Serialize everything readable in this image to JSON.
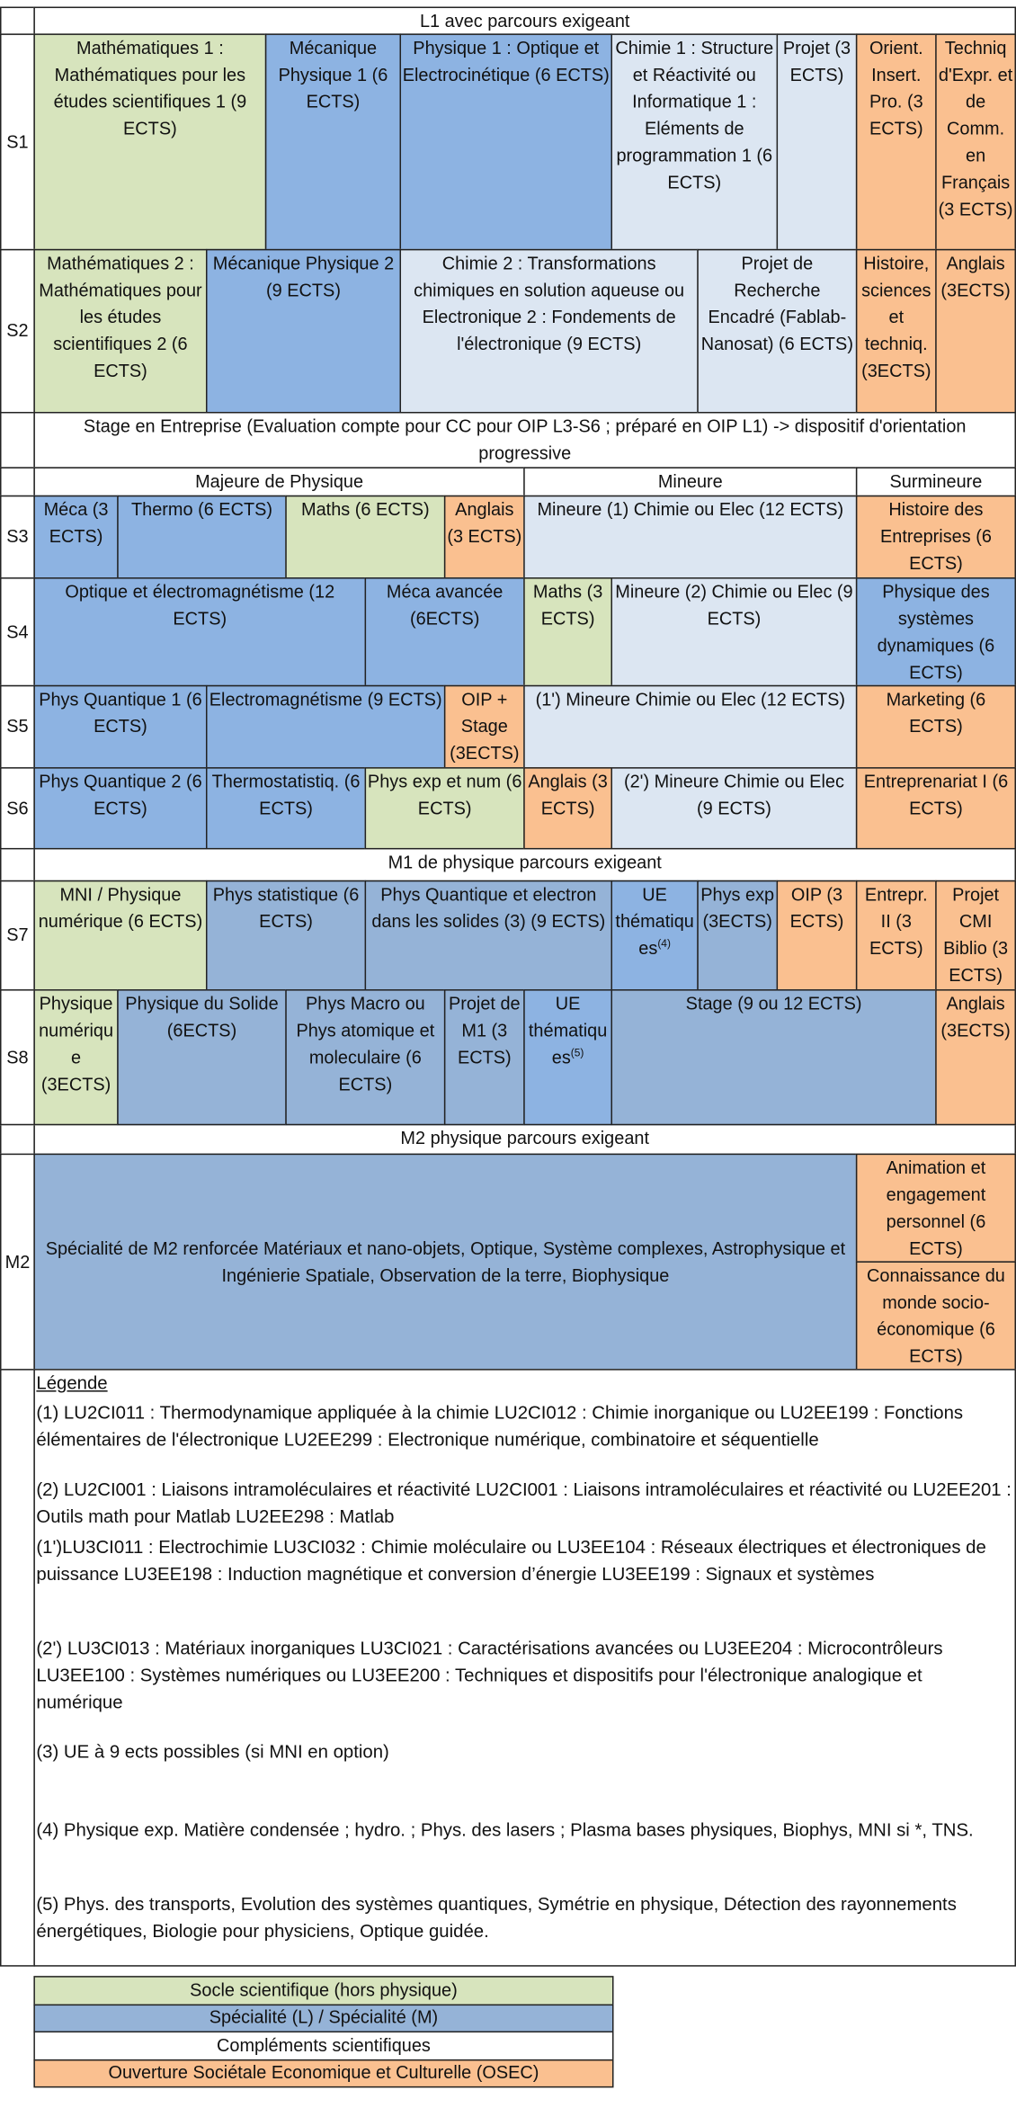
{
  "l1_title": "L1 avec parcours exigeant",
  "rows": [
    {
      "label": "S1",
      "cells": [
        "Mathématiques 1 : Mathématiques pour les études scientifiques 1 (9 ECTS)",
        "Mécanique Physique 1 (6 ECTS)",
        "Physique 1 : Optique et Electrocinétique (6 ECTS)",
        "Chimie 1 : Structure et Réactivité ou Informatique 1 : Eléments de programmation 1 (6 ECTS)",
        "Projet (3 ECTS)",
        "Orient. Insert. Pro. (3 ECTS)",
        "Techniq d'Expr. et de Comm. en Français (3 ECTS)"
      ]
    },
    {
      "label": "S2",
      "cells": [
        "Mathématiques 2 : Mathématiques pour les études scientifiques 2 (6 ECTS)",
        "Mécanique Physique 2 (9 ECTS)",
        "Chimie 2 : Transformations chimiques en solution aqueuse ou Electronique 2 : Fondements de l'électronique (9 ECTS)",
        "Projet de Recherche Encadré (Fablab-Nanosat) (6 ECTS)",
        "Histoire, sciences et techniq. (3ECTS)",
        "Anglais (3ECTS)"
      ]
    },
    {
      "label": "S3",
      "cells": [
        "Méca (3 ECTS)",
        "Thermo (6 ECTS)",
        "Maths (6 ECTS)",
        "Anglais (3 ECTS)",
        "Mineure (1) Chimie ou Elec (12 ECTS)",
        "Histoire des Entreprises (6 ECTS)"
      ]
    },
    {
      "label": "S4",
      "cells": [
        "Optique et électromagnétisme (12 ECTS)",
        "Méca avancée (6ECTS)",
        "Maths (3 ECTS)",
        "Mineure (2)  Chimie ou Elec (9 ECTS)",
        "Physique des systèmes dynamiques (6 ECTS)"
      ]
    },
    {
      "label": "S5",
      "cells": [
        "Phys Quantique 1 (6 ECTS)",
        "Electromagnétisme (9 ECTS)",
        "OIP + Stage (3ECTS)",
        "(1') Mineure Chimie ou Elec (12 ECTS)",
        "Marketing (6 ECTS)"
      ]
    },
    {
      "label": "S6",
      "cells": [
        "Phys Quantique 2 (6 ECTS)",
        "Thermostatistiq. (6 ECTS)",
        "Phys exp et num (6 ECTS)",
        "Anglais (3 ECTS)",
        "(2') Mineure Chimie ou Elec (9 ECTS)",
        "Entreprenariat I (6 ECTS)"
      ]
    },
    {
      "label": "S7",
      "cells": [
        "MNI / Physique numérique (6 ECTS)",
        "Phys statistique (6 ECTS)",
        "Phys Quantique et electron dans les solides (3) (9 ECTS)",
        {
          "text": "UE thématiques",
          "sup": "(4)"
        },
        "Phys exp (3ECTS)",
        "OIP (3 ECTS)",
        "Entrepr. II (3 ECTS)",
        "Projet CMI Biblio (3 ECTS)"
      ]
    },
    {
      "label": "S8",
      "cells": [
        "Physique numérique (3ECTS)",
        "Physique du Solide (6ECTS)",
        "Phys Macro ou Phys atomique et moleculaire (6 ECTS)",
        "Projet de M1 (3 ECTS)",
        {
          "text": "UE thématiques",
          "sup": "(5)"
        },
        "Stage (9 ou 12 ECTS)",
        "Anglais (3ECTS)"
      ]
    },
    {
      "label": "M2",
      "cells": [
        "Spécialité de M2 renforcée Matériaux et nano-objets, Optique, Système complexes, Astrophysique et Ingénierie Spatiale, Observation de la terre, Biophysique",
        "Animation et engagement personnel (6 ECTS)",
        "Connaissance du monde socio-économique (6 ECTS)"
      ]
    }
  ],
  "stage": "Stage en Entreprise (Evaluation compte pour CC pour OIP L3-S6 ; préparé en OIP L1) -> dispositif d'orientation progressive",
  "l2_headers": [
    "Majeure de Physique",
    "Mineure",
    "Surmineure"
  ],
  "m1_title": "M1 de physique parcours exigeant",
  "m2_title": "M2 physique parcours exigeant",
  "legend": {
    "title": "Légende",
    "items": [
      "(1) LU2CI011 : Thermodynamique appliquée à la chimie LU2CI012 : Chimie inorganique  ou LU2EE199 : Fonctions élémentaires de l'électronique LU2EE299 : Electronique numérique, combinatoire et séquentielle",
      "(2) LU2CI001 : Liaisons intramoléculaires et réactivité LU2CI001 : Liaisons intramoléculaires et réactivité  ou LU2EE201 : Outils math pour Matlab LU2EE298 : Matlab",
      "(1')LU3CI011 : Electrochimie LU3CI032 : Chimie moléculaire   ou LU3EE104 : Réseaux électriques et électroniques de puissance LU3EE198 : Induction magnétique et conversion d’énergie LU3EE199 : Signaux et systèmes",
      "(2') LU3CI013 : Matériaux inorganiques LU3CI021 : Caractérisations avancées ou LU3EE204 : Microcontrôleurs LU3EE100 : Systèmes numériques ou LU3EE200 : Techniques et dispositifs pour l'électronique analogique et numérique",
      "(3) UE à 9 ects possibles (si MNI en option)",
      "(4) Physique exp. Matière condensée ; hydro. ; Phys. des lasers ; Plasma bases physiques, Biophys, MNI si *, TNS.",
      "(5) Phys. des transports, Evolution des systèmes quantiques, Symétrie en physique, Détection des rayonnements énergétiques, Biologie pour physiciens, Optique guidée."
    ]
  },
  "key": [
    "Socle scientifique (hors physique)",
    "Spécialité (L) / Spécialité (M)",
    "Compléments scientifiques",
    "Ouverture Sociétale Economique et Culturelle (OSEC)"
  ]
}
